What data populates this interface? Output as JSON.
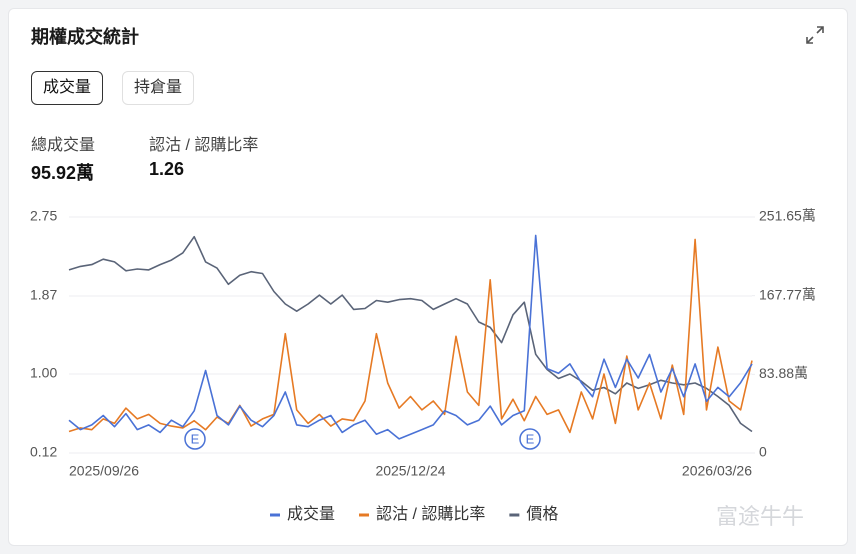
{
  "header": {
    "title": "期權成交統計"
  },
  "tabs": [
    "成交量",
    "持倉量"
  ],
  "stats": [
    {
      "label": "總成交量",
      "value": "95.92萬"
    },
    {
      "label": "認沽 / 認購比率",
      "value": "1.26"
    }
  ],
  "watermark": "富途牛牛",
  "chart_data": {
    "type": "line",
    "categories": [
      "2025/09/26",
      null,
      null,
      null,
      null,
      null,
      null,
      null,
      null,
      null,
      null,
      null,
      null,
      null,
      null,
      null,
      null,
      null,
      null,
      null,
      null,
      null,
      null,
      null,
      null,
      null,
      null,
      null,
      null,
      null,
      "2025/12/24",
      null,
      null,
      null,
      null,
      null,
      null,
      null,
      null,
      null,
      null,
      null,
      null,
      null,
      null,
      null,
      null,
      null,
      null,
      null,
      null,
      null,
      null,
      null,
      null,
      null,
      null,
      null,
      null,
      null,
      "2026/03/26"
    ],
    "series": [
      {
        "name": "成交量",
        "color": "#4a72d6",
        "axis": "y2",
        "values": [
          35,
          25,
          30,
          40,
          28,
          42,
          25,
          30,
          22,
          35,
          28,
          45,
          88,
          40,
          30,
          50,
          35,
          28,
          40,
          65,
          30,
          28,
          35,
          40,
          22,
          30,
          35,
          20,
          25,
          15,
          20,
          25,
          30,
          45,
          40,
          30,
          35,
          50,
          30,
          40,
          45,
          232,
          90,
          85,
          95,
          75,
          60,
          100,
          70,
          100,
          80,
          105,
          65,
          90,
          60,
          95,
          55,
          70,
          60,
          75,
          95
        ]
      },
      {
        "name": "認沽 / 認購比率",
        "color": "#e67a24",
        "values": [
          0.36,
          0.4,
          0.38,
          0.5,
          0.45,
          0.62,
          0.5,
          0.55,
          0.45,
          0.42,
          0.4,
          0.48,
          0.38,
          0.52,
          0.45,
          0.65,
          0.42,
          0.5,
          0.55,
          1.45,
          0.6,
          0.45,
          0.55,
          0.42,
          0.5,
          0.48,
          0.7,
          1.45,
          0.9,
          0.62,
          0.75,
          0.6,
          0.7,
          0.55,
          1.42,
          0.8,
          0.65,
          2.05,
          0.5,
          0.72,
          0.48,
          0.75,
          0.55,
          0.6,
          0.35,
          0.8,
          0.5,
          1.0,
          0.45,
          1.2,
          0.6,
          0.9,
          0.5,
          1.1,
          0.55,
          2.5,
          0.6,
          1.3,
          0.7,
          0.6,
          1.15
        ]
      },
      {
        "name": "價格",
        "color": "#5a6478",
        "values": [
          2.16,
          2.2,
          2.22,
          2.28,
          2.25,
          2.15,
          2.17,
          2.16,
          2.22,
          2.27,
          2.35,
          2.53,
          2.25,
          2.18,
          2.0,
          2.1,
          2.14,
          2.12,
          1.92,
          1.78,
          1.7,
          1.78,
          1.88,
          1.78,
          1.88,
          1.72,
          1.73,
          1.82,
          1.8,
          1.83,
          1.84,
          1.82,
          1.72,
          1.78,
          1.84,
          1.78,
          1.58,
          1.52,
          1.35,
          1.66,
          1.8,
          1.22,
          1.05,
          0.95,
          1.0,
          0.92,
          0.82,
          0.85,
          0.78,
          0.9,
          0.84,
          0.88,
          0.93,
          0.9,
          0.88,
          0.9,
          0.84,
          0.75,
          0.65,
          0.45,
          0.36
        ]
      }
    ],
    "markers": [
      "E",
      "E"
    ],
    "ylim": [
      0.12,
      2.75
    ],
    "yticks": [
      0.12,
      {
        "value": 1,
        "label": "1.00"
      },
      1.87,
      2.75
    ],
    "y2lim": [
      0,
      251.65
    ],
    "y2ticks": [
      0,
      {
        "value": 83.88,
        "label": "83.88萬"
      },
      {
        "value": 167.77,
        "label": "167.77萬"
      },
      {
        "value": 251.65,
        "label": "251.65萬"
      }
    ],
    "grid": true
  }
}
